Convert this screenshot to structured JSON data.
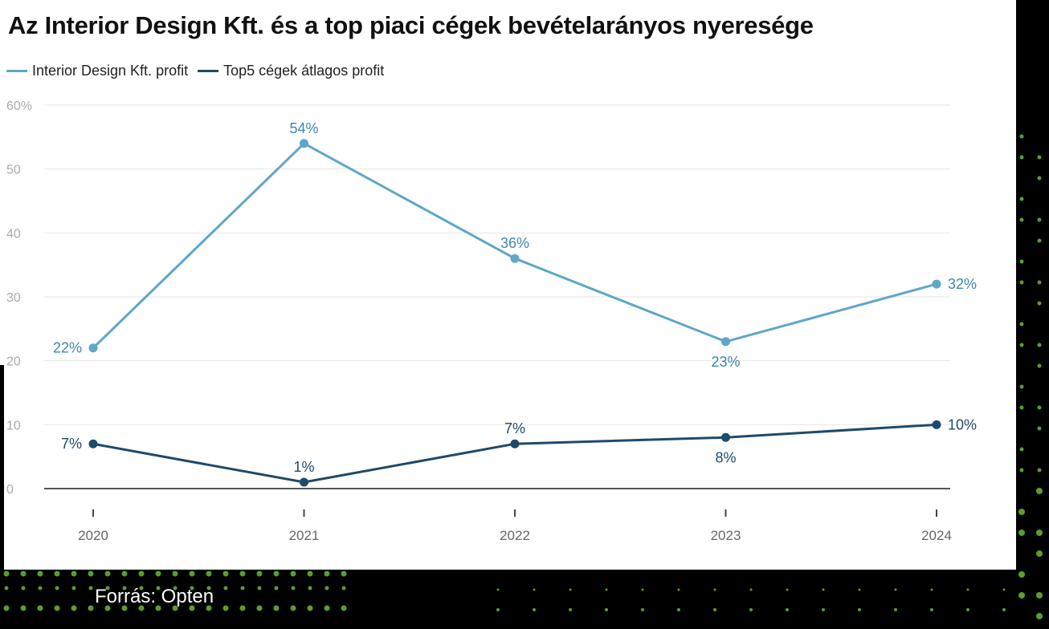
{
  "source": "Forrás: Opten",
  "chart_data": {
    "type": "line",
    "title": "Az Interior Design Kft. és a top piaci cégek bevételarányos nyeresége",
    "x": [
      "2020",
      "2021",
      "2022",
      "2023",
      "2024"
    ],
    "ylim": [
      0,
      60
    ],
    "yticks": [
      {
        "value": 0,
        "label": "0"
      },
      {
        "value": 10,
        "label": "10"
      },
      {
        "value": 20,
        "label": "20"
      },
      {
        "value": 30,
        "label": "30"
      },
      {
        "value": 40,
        "label": "40"
      },
      {
        "value": 50,
        "label": "50"
      },
      {
        "value": 60,
        "label": "60%"
      }
    ],
    "grid": true,
    "legend_position": "top-left",
    "series": [
      {
        "name": "Interior Design Kft. profit",
        "color": "#5fa6c9",
        "label_color": "#3f86ab",
        "values": [
          22,
          54,
          36,
          23,
          32
        ],
        "labels": [
          "22%",
          "54%",
          "36%",
          "23%",
          "32%"
        ]
      },
      {
        "name": "Top5 cégek átlagos profit",
        "color": "#1f4a6b",
        "label_color": "#1f4a6b",
        "values": [
          7,
          1,
          7,
          8,
          10
        ],
        "labels": [
          "7%",
          "1%",
          "7%",
          "8%",
          "10%"
        ]
      }
    ]
  }
}
